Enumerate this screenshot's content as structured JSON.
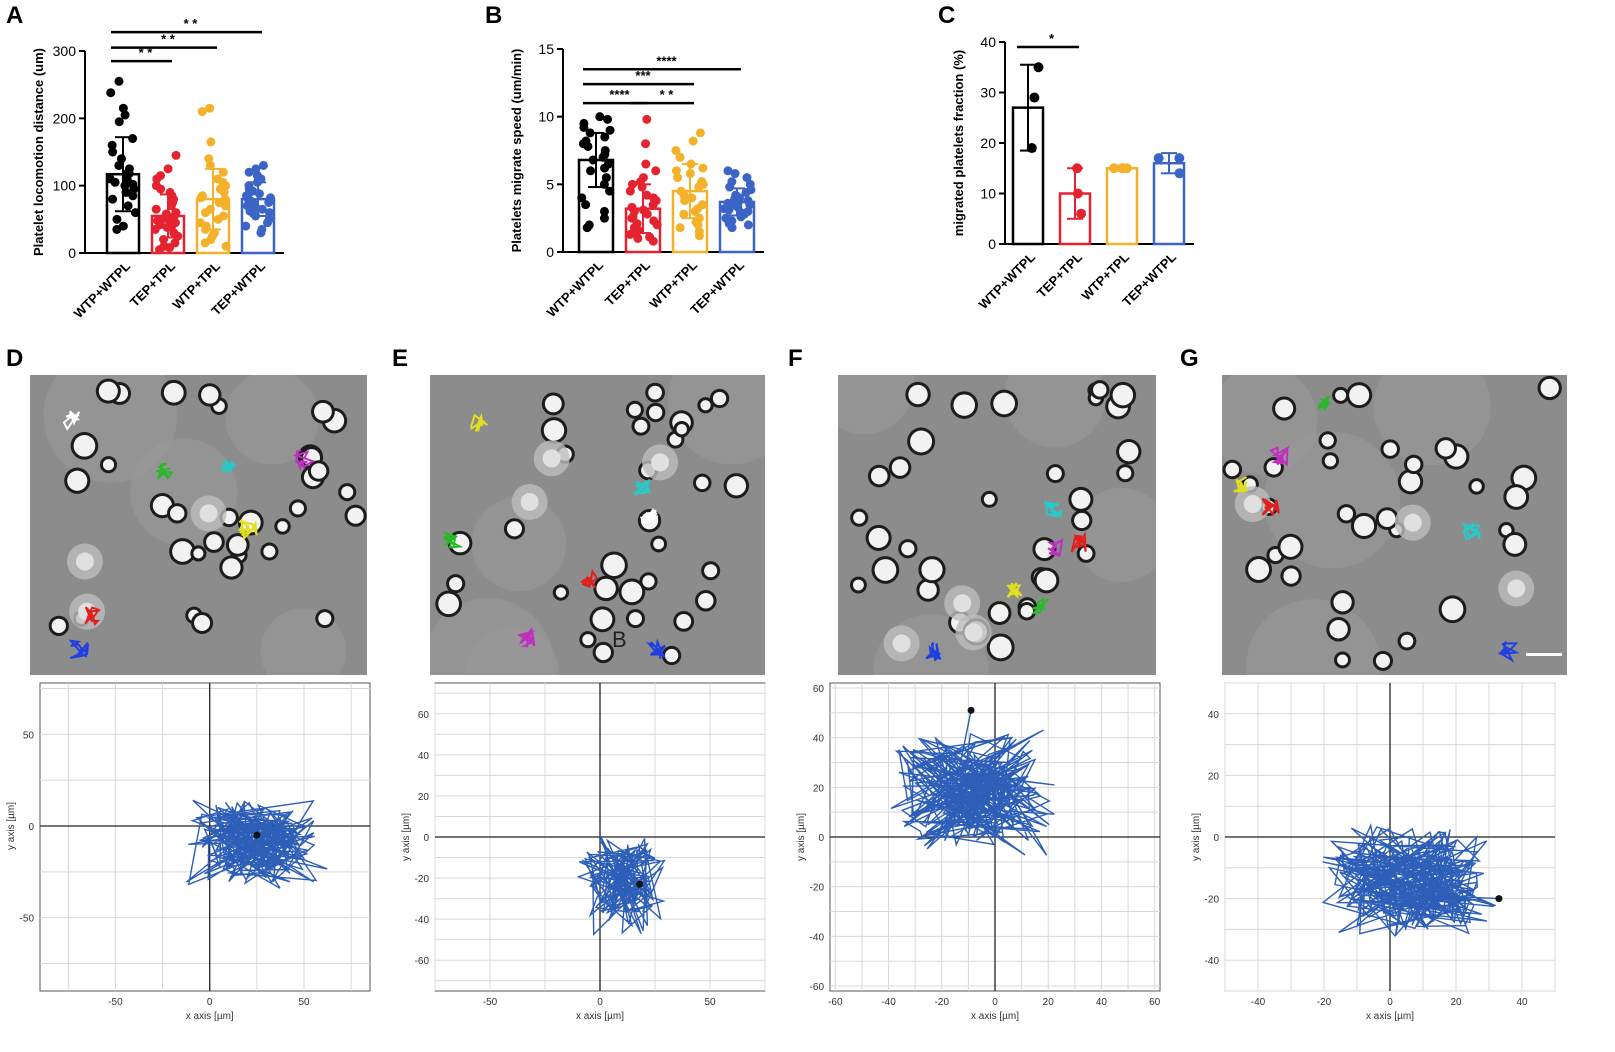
{
  "colors": {
    "black": "#000000",
    "red": "#e52230",
    "yellow": "#f4b12b",
    "blue": "#3b64c6",
    "track": "#2e5fb8"
  },
  "panel_letters": {
    "a": "A",
    "b": "B",
    "c": "C",
    "d": "D",
    "e": "E",
    "f": "F",
    "g": "G"
  },
  "micro_annotation_e": "B",
  "chart_data": [
    {
      "id": "A",
      "type": "bar",
      "title": "",
      "ylabel": "Platelet  locomotion distance (um)",
      "xlabel": "",
      "ylim": [
        0,
        300
      ],
      "yticks": [
        0,
        100,
        200,
        300
      ],
      "categories": [
        "WTP+WTPL",
        "TEP+TPL",
        "WTP+TPL",
        "TEP+WTPL"
      ],
      "means": [
        117,
        55,
        80,
        80
      ],
      "sd": [
        55,
        32,
        45,
        25
      ],
      "points": [
        [
          255,
          238,
          215,
          205,
          195,
          170,
          160,
          150,
          140,
          130,
          125,
          120,
          118,
          115,
          110,
          108,
          105,
          102,
          100,
          95,
          90,
          85,
          80,
          70,
          60,
          50,
          40,
          35
        ],
        [
          145,
          125,
          115,
          110,
          100,
          95,
          90,
          85,
          80,
          75,
          70,
          65,
          60,
          58,
          55,
          52,
          50,
          48,
          45,
          42,
          40,
          38,
          35,
          30,
          25,
          20,
          15,
          10,
          8,
          5
        ],
        [
          215,
          210,
          165,
          140,
          130,
          120,
          110,
          105,
          100,
          95,
          90,
          85,
          82,
          80,
          75,
          70,
          65,
          60,
          55,
          50,
          45,
          40,
          35,
          30,
          25,
          20,
          15,
          10
        ],
        [
          130,
          125,
          120,
          115,
          110,
          105,
          100,
          95,
          92,
          90,
          88,
          85,
          82,
          80,
          78,
          75,
          72,
          70,
          68,
          65,
          62,
          60,
          55,
          50,
          45,
          40,
          35,
          30
        ]
      ],
      "significance": [
        {
          "from": 0,
          "to": 1,
          "label": "* *",
          "y": 285
        },
        {
          "from": 0,
          "to": 2,
          "label": "* *",
          "y": 305
        },
        {
          "from": 0,
          "to": 3,
          "label": "* *",
          "y": 328
        }
      ]
    },
    {
      "id": "B",
      "type": "bar",
      "title": "",
      "ylabel": "Platelets  migrate  speed (um/min)",
      "xlabel": "",
      "ylim": [
        0,
        15
      ],
      "yticks": [
        0,
        5,
        10,
        15
      ],
      "categories": [
        "WTP+WTPL",
        "TEP+TPL",
        "WTP+TPL",
        "TEP+WTPL"
      ],
      "means": [
        6.8,
        3.2,
        4.5,
        3.7
      ],
      "sd": [
        2.0,
        1.8,
        2.0,
        1.0
      ],
      "points": [
        [
          10,
          9.8,
          9.5,
          9.2,
          9,
          8.8,
          8.5,
          8.2,
          8,
          7.8,
          7.5,
          7.2,
          7,
          6.8,
          6.5,
          6.2,
          6,
          5.5,
          5,
          4.5,
          4,
          3.5,
          3,
          2.5,
          2,
          1.8
        ],
        [
          9.8,
          8,
          6.5,
          6,
          5.5,
          5.2,
          5,
          4.8,
          4.5,
          4.2,
          4,
          3.8,
          3.5,
          3.3,
          3.1,
          3,
          2.8,
          2.6,
          2.5,
          2.3,
          2.1,
          2,
          1.8,
          1.6,
          1.5,
          1.3,
          1.1,
          1,
          0.8
        ],
        [
          8.8,
          8.2,
          7.5,
          7,
          6.5,
          6.2,
          6,
          5.8,
          5.5,
          5.2,
          5,
          4.8,
          4.5,
          4.2,
          4,
          3.8,
          3.5,
          3.2,
          3,
          2.8,
          2.5,
          2.2,
          2,
          1.8,
          1.5,
          1.2
        ],
        [
          6,
          5.8,
          5.5,
          5.2,
          5,
          4.8,
          4.6,
          4.4,
          4.2,
          4,
          3.9,
          3.8,
          3.7,
          3.6,
          3.5,
          3.4,
          3.3,
          3.2,
          3.1,
          3,
          2.9,
          2.8,
          2.6,
          2.5,
          2.3,
          2.1,
          2,
          1.8
        ]
      ],
      "significance": [
        {
          "from": 0,
          "to": 1,
          "label": "****",
          "y": 11
        },
        {
          "from": 1,
          "to": 2,
          "label": "* *",
          "y": 11
        },
        {
          "from": 0,
          "to": 2,
          "label": "***",
          "y": 12.4
        },
        {
          "from": 0,
          "to": 3,
          "label": "****",
          "y": 13.5
        }
      ]
    },
    {
      "id": "C",
      "type": "bar",
      "title": "",
      "ylabel": "migrated platelets fraction (%)",
      "xlabel": "",
      "ylim": [
        0,
        40
      ],
      "yticks": [
        0,
        10,
        20,
        30,
        40
      ],
      "categories": [
        "WTP+WTPL",
        "TEP+TPL",
        "WTP+TPL",
        "TEP+WTPL"
      ],
      "means": [
        27,
        10,
        15,
        16
      ],
      "sd": [
        8.5,
        5,
        0.5,
        2
      ],
      "points": [
        [
          35,
          29,
          19
        ],
        [
          15,
          10,
          6
        ],
        [
          15,
          15,
          15
        ],
        [
          17,
          17,
          14
        ]
      ],
      "significance": [
        {
          "from": 0,
          "to": 1,
          "label": "*",
          "y": 39
        }
      ]
    },
    {
      "id": "D",
      "type": "line",
      "xlabel": "x axis [µm]",
      "ylabel": "y axis [µm]",
      "xlim": [
        -90,
        85
      ],
      "ylim": [
        -90,
        78
      ],
      "xticks": [
        -50,
        0,
        50
      ],
      "yticks": [
        -50,
        0,
        50
      ],
      "end_point": [
        25,
        -5
      ],
      "track": {
        "cx": 25,
        "cy": -10,
        "sx": 55,
        "sy": 38,
        "n": 240,
        "seed": 11
      }
    },
    {
      "id": "E",
      "type": "line",
      "xlabel": "x axis [µm]",
      "ylabel": "y axis [µm]",
      "xlim": [
        -75,
        75
      ],
      "ylim": [
        -75,
        75
      ],
      "xticks": [
        -50,
        0,
        50
      ],
      "yticks": [
        -60,
        -40,
        -20,
        0,
        20,
        40,
        60
      ],
      "end_point": [
        18,
        -23
      ],
      "track": {
        "cx": 10,
        "cy": -22,
        "sx": 30,
        "sy": 40,
        "n": 150,
        "seed": 5
      }
    },
    {
      "id": "F",
      "type": "line",
      "xlabel": "x axis [µm]",
      "ylabel": "y axis [µm]",
      "xlim": [
        -62,
        62
      ],
      "ylim": [
        -62,
        62
      ],
      "xticks": [
        -60,
        -40,
        -20,
        0,
        20,
        40,
        60
      ],
      "yticks": [
        -60,
        -40,
        -20,
        0,
        20,
        40,
        60
      ],
      "end_point": [
        -9,
        51
      ],
      "track": {
        "cx": -8,
        "cy": 18,
        "sx": 48,
        "sy": 40,
        "n": 260,
        "seed": 23
      }
    },
    {
      "id": "G",
      "type": "line",
      "xlabel": "x axis [µm]",
      "ylabel": "y axis [µm]",
      "xlim": [
        -50,
        50
      ],
      "ylim": [
        -50,
        50
      ],
      "xticks": [
        -40,
        -20,
        0,
        20,
        40
      ],
      "yticks": [
        -40,
        -20,
        0,
        20,
        40
      ],
      "end_point": [
        33,
        -20
      ],
      "track": {
        "cx": 5,
        "cy": -14,
        "sx": 40,
        "sy": 28,
        "n": 280,
        "seed": 37
      }
    }
  ]
}
